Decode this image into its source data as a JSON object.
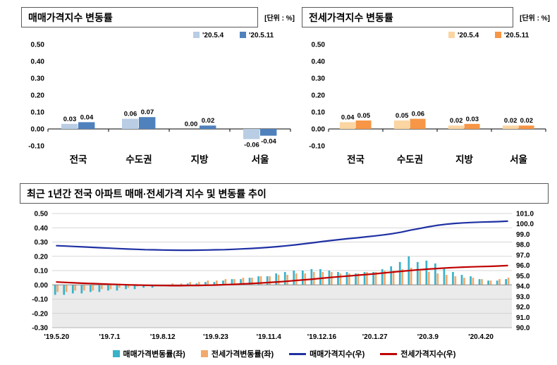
{
  "chart_data": [
    {
      "id": "sale-price-change-by-region",
      "type": "bar",
      "title": "매매가격지수 변동률",
      "unit_label": "[단위 : %]",
      "categories": [
        "전국",
        "수도권",
        "지방",
        "서울"
      ],
      "series": [
        {
          "name": "'20.5.4",
          "color": "#b9cde4",
          "values": [
            0.03,
            0.06,
            0.0,
            -0.06
          ]
        },
        {
          "name": "'20.5.11",
          "color": "#4f81bd",
          "values": [
            0.04,
            0.07,
            0.02,
            -0.04
          ]
        }
      ],
      "ylim": [
        -0.1,
        0.5
      ],
      "ytick_labels": [
        "0.50",
        "0.40",
        "0.30",
        "0.20",
        "0.10",
        "0.00",
        "-0.10"
      ],
      "legend_position": "top-right",
      "grid": false
    },
    {
      "id": "jeonse-price-change-by-region",
      "type": "bar",
      "title": "전세가격지수 변동률",
      "unit_label": "[단위 : %]",
      "categories": [
        "전국",
        "수도권",
        "지방",
        "서울"
      ],
      "series": [
        {
          "name": "'20.5.4",
          "color": "#fbd5a2",
          "values": [
            0.04,
            0.05,
            0.02,
            0.02
          ]
        },
        {
          "name": "'20.5.11",
          "color": "#f79646",
          "values": [
            0.05,
            0.06,
            0.03,
            0.02
          ]
        }
      ],
      "ylim": [
        -0.1,
        0.5
      ],
      "ytick_labels": [
        "0.50",
        "0.40",
        "0.30",
        "0.20",
        "0.10",
        "0.00",
        "-0.10"
      ],
      "legend_position": "top-right",
      "grid": false
    },
    {
      "id": "national-apartment-1yr-trend",
      "type": "combo",
      "title": "최근 1년간 전국 아파트 매매·전세가격 지수 및 변동률 추이",
      "n_points": 52,
      "x_tick_interval": 6,
      "x_tick_labels": [
        "'19.5.20",
        "'19.7.1",
        "'19.8.12",
        "'19.9.23",
        "'19.11.4",
        "'19.12.16",
        "'20.1.27",
        "'20.3.9",
        "'20.4.20"
      ],
      "left_axis": {
        "min": -0.3,
        "max": 0.5,
        "tick_labels": [
          "0.50",
          "0.40",
          "0.30",
          "0.20",
          "0.10",
          "0.00",
          "-0.10",
          "-0.20",
          "-0.30"
        ]
      },
      "right_axis": {
        "min": 90.0,
        "max": 101.0,
        "tick_labels": [
          "101.0",
          "100.0",
          "99.0",
          "98.0",
          "97.0",
          "96.0",
          "95.0",
          "94.0",
          "93.0",
          "92.0",
          "91.0",
          "90.0"
        ]
      },
      "series": [
        {
          "name": "매매가격변동률(좌)",
          "type": "bar",
          "axis": "left",
          "color": "#38b3c9",
          "values": [
            -0.07,
            -0.07,
            -0.06,
            -0.06,
            -0.05,
            -0.05,
            -0.04,
            -0.04,
            -0.03,
            -0.03,
            -0.02,
            -0.02,
            -0.01,
            -0.01,
            0.0,
            0.01,
            0.01,
            0.02,
            0.02,
            0.03,
            0.04,
            0.04,
            0.05,
            0.06,
            0.06,
            0.08,
            0.09,
            0.1,
            0.1,
            0.11,
            0.11,
            0.1,
            0.09,
            0.09,
            0.08,
            0.09,
            0.09,
            0.11,
            0.13,
            0.16,
            0.2,
            0.16,
            0.17,
            0.15,
            0.12,
            0.09,
            0.07,
            0.06,
            0.04,
            0.03,
            0.03,
            0.04
          ]
        },
        {
          "name": "전세가격변동률(좌)",
          "type": "bar",
          "axis": "left",
          "color": "#f2a96d",
          "values": [
            -0.05,
            -0.05,
            -0.04,
            -0.04,
            -0.04,
            -0.03,
            -0.03,
            -0.02,
            -0.02,
            -0.01,
            -0.01,
            0.0,
            0.0,
            0.01,
            0.01,
            0.02,
            0.02,
            0.03,
            0.03,
            0.04,
            0.04,
            0.05,
            0.05,
            0.06,
            0.06,
            0.07,
            0.07,
            0.08,
            0.08,
            0.09,
            0.09,
            0.09,
            0.08,
            0.08,
            0.08,
            0.09,
            0.09,
            0.1,
            0.1,
            0.11,
            0.12,
            0.1,
            0.09,
            0.08,
            0.07,
            0.06,
            0.05,
            0.05,
            0.04,
            0.03,
            0.04,
            0.05
          ]
        },
        {
          "name": "매매가격지수(우)",
          "type": "line",
          "axis": "right",
          "color": "#1f31a3",
          "values": [
            97.9,
            97.86,
            97.82,
            97.78,
            97.74,
            97.7,
            97.66,
            97.62,
            97.58,
            97.55,
            97.52,
            97.5,
            97.48,
            97.47,
            97.46,
            97.46,
            97.47,
            97.48,
            97.5,
            97.52,
            97.55,
            97.59,
            97.63,
            97.68,
            97.74,
            97.81,
            97.89,
            97.98,
            98.08,
            98.18,
            98.29,
            98.39,
            98.49,
            98.58,
            98.66,
            98.75,
            98.84,
            98.94,
            99.06,
            99.21,
            99.39,
            99.55,
            99.71,
            99.85,
            99.96,
            100.04,
            100.1,
            100.14,
            100.17,
            100.19,
            100.22,
            100.26
          ]
        },
        {
          "name": "전세가격지수(우)",
          "type": "line",
          "axis": "right",
          "color": "#c00000",
          "values": [
            94.4,
            94.36,
            94.32,
            94.28,
            94.25,
            94.22,
            94.19,
            94.16,
            94.13,
            94.11,
            94.09,
            94.07,
            94.06,
            94.05,
            94.05,
            94.06,
            94.07,
            94.09,
            94.11,
            94.14,
            94.17,
            94.21,
            94.25,
            94.3,
            94.35,
            94.41,
            94.47,
            94.54,
            94.61,
            94.68,
            94.76,
            94.84,
            94.91,
            94.98,
            95.05,
            95.12,
            95.19,
            95.27,
            95.35,
            95.43,
            95.51,
            95.58,
            95.64,
            95.7,
            95.75,
            95.79,
            95.83,
            95.86,
            95.89,
            95.91,
            95.94,
            95.98
          ]
        }
      ]
    }
  ]
}
